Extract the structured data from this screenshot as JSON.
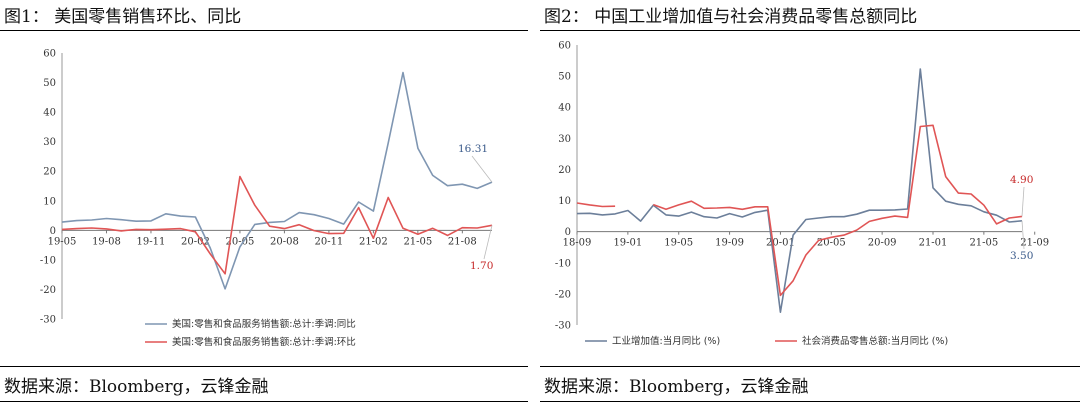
{
  "charts": [
    {
      "title": "图1： 美国零售销售环比、同比",
      "source": "数据来源：Bloomberg，云锋金融",
      "chart_data": {
        "type": "line",
        "ylim": [
          -30,
          60
        ],
        "yticks": [
          -30,
          -20,
          -10,
          0,
          10,
          20,
          30,
          40,
          50,
          60
        ],
        "x_labels": [
          "19-05",
          "19-08",
          "19-11",
          "20-02",
          "20-05",
          "20-08",
          "20-11",
          "21-02",
          "21-05",
          "21-08"
        ],
        "x_start": "19-05",
        "grid": false,
        "legend_position": "bottom-center",
        "series": [
          {
            "name": "美国:零售和食品服务销售额:总计:季调:同比",
            "color": "#7f96b2",
            "values": [
              2.8,
              3.3,
              3.5,
              4.0,
              3.6,
              3.1,
              3.2,
              5.6,
              4.8,
              4.5,
              -6.0,
              -19.8,
              -5.6,
              2.0,
              2.7,
              3.0,
              6.0,
              5.3,
              4.0,
              2.1,
              9.6,
              6.5,
              29.5,
              53.4,
              27.8,
              18.6,
              15.1,
              15.6,
              14.2,
              16.31
            ]
          },
          {
            "name": "美国:零售和食品服务销售额:总计:季调:环比",
            "color": "#e05555",
            "values": [
              0.3,
              0.6,
              0.8,
              0.5,
              -0.2,
              0.3,
              0.2,
              0.4,
              0.6,
              -0.5,
              -8.0,
              -14.7,
              18.2,
              8.5,
              1.4,
              0.6,
              1.9,
              -0.1,
              -1.1,
              -1.0,
              7.7,
              -2.7,
              11.1,
              0.7,
              -1.3,
              0.7,
              -1.7,
              0.9,
              0.8,
              1.7
            ]
          }
        ],
        "annotations": [
          {
            "series": 0,
            "text": "16.31",
            "color": "#3a5a8a"
          },
          {
            "series": 1,
            "text": "1.70",
            "color": "#c62828"
          }
        ]
      }
    },
    {
      "title": "图2： 中国工业增加值与社会消费品零售总额同比",
      "source": "数据来源：Bloomberg，云锋金融",
      "chart_data": {
        "type": "line",
        "ylim": [
          -30,
          60
        ],
        "yticks": [
          -30,
          -20,
          -10,
          0,
          10,
          20,
          30,
          40,
          50,
          60
        ],
        "x_labels": [
          "18-09",
          "19-01",
          "19-05",
          "19-09",
          "20-01",
          "20-05",
          "20-09",
          "21-01",
          "21-05",
          "21-09"
        ],
        "x_start": "18-09",
        "grid": false,
        "legend_position": "bottom-center",
        "series": [
          {
            "name": "工业增加值:当月同比 (%)",
            "color": "#6c7f9a",
            "values": [
              5.8,
              5.9,
              5.4,
              5.7,
              6.8,
              3.4,
              8.5,
              5.4,
              5.0,
              6.3,
              4.8,
              4.4,
              5.8,
              4.7,
              6.2,
              6.9,
              -25.9,
              -1.1,
              3.9,
              4.4,
              4.8,
              4.8,
              5.6,
              6.9,
              6.9,
              7.0,
              7.3,
              52.3,
              14.1,
              9.8,
              8.8,
              8.3,
              6.4,
              5.3,
              3.1,
              3.5
            ]
          },
          {
            "name": "社会消费品零售总额:当月同比 (%)",
            "color": "#e05555",
            "values": [
              9.2,
              8.6,
              8.1,
              8.2,
              null,
              null,
              8.7,
              7.2,
              8.6,
              9.8,
              7.5,
              7.6,
              7.8,
              7.2,
              8.0,
              8.0,
              -20.5,
              -15.8,
              -7.5,
              -2.8,
              -1.8,
              -1.1,
              0.5,
              3.3,
              4.3,
              5.0,
              4.6,
              33.8,
              34.2,
              17.7,
              12.4,
              12.1,
              8.5,
              2.5,
              4.4,
              4.9
            ]
          }
        ],
        "annotations": [
          {
            "series": 0,
            "text": "3.50",
            "color": "#3a5a8a"
          },
          {
            "series": 1,
            "text": "4.90",
            "color": "#c62828"
          }
        ]
      }
    }
  ]
}
